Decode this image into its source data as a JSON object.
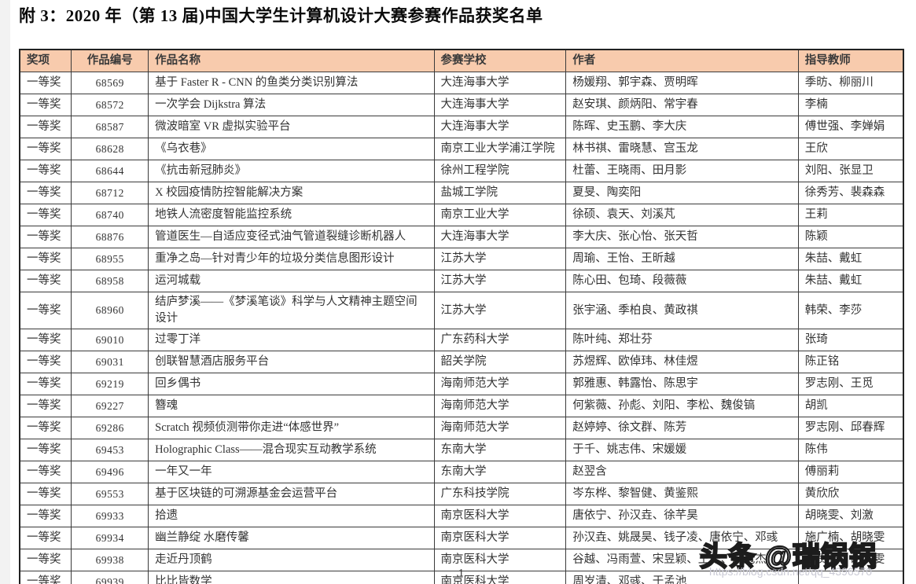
{
  "page": {
    "title": "附 3：2020 年（第 13 届)中国大学生计算机设计大赛参赛作品获奖名单",
    "page_number": "1"
  },
  "watermark": {
    "headline": "头条 @瑞锅锅",
    "url": "https://blog.csdn.net/qq_4396570"
  },
  "colors": {
    "header_bg": "#F8CBAD",
    "border": "#3a3a3a",
    "text": "#333333"
  },
  "table": {
    "headers": [
      "奖项",
      "作品编号",
      "作品名称",
      "参赛学校",
      "作者",
      "指导教师"
    ],
    "rows": [
      [
        "一等奖",
        "68569",
        "基于 Faster R - CNN 的鱼类分类识别算法",
        "大连海事大学",
        "杨媛翔、郭宇森、贾明晖",
        "季昉、柳丽川"
      ],
      [
        "一等奖",
        "68572",
        "一次学会 Dijkstra 算法",
        "大连海事大学",
        "赵安琪、颜炳阳、常宇春",
        "李楠"
      ],
      [
        "一等奖",
        "68587",
        "微波暗室 VR 虚拟实验平台",
        "大连海事大学",
        "陈晖、史玉鹏、李大庆",
        "傅世强、李婵娟"
      ],
      [
        "一等奖",
        "68628",
        "《乌衣巷》",
        "南京工业大学浦江学院",
        "林书祺、雷晓慧、宫玉龙",
        "王欣"
      ],
      [
        "一等奖",
        "68644",
        "《抗击新冠肺炎》",
        "徐州工程学院",
        "杜蕾、王晓雨、田月影",
        "刘阳、张显卫"
      ],
      [
        "一等奖",
        "68712",
        "X 校园疫情防控智能解决方案",
        "盐城工学院",
        "夏旻、陶奕阳",
        "徐秀芳、裴森森"
      ],
      [
        "一等奖",
        "68740",
        "地铁人流密度智能监控系统",
        "南京工业大学",
        "徐硕、袁天、刘溪芃",
        "王莉"
      ],
      [
        "一等奖",
        "68876",
        "管道医生—自适应变径式油气管道裂缝诊断机器人",
        "大连海事大学",
        "李大庆、张心怡、张天哲",
        "陈颖"
      ],
      [
        "一等奖",
        "68955",
        "重净之岛—针对青少年的垃圾分类信息图形设计",
        "江苏大学",
        "周瑜、王怡、王昕越",
        "朱喆、戴虹"
      ],
      [
        "一等奖",
        "68958",
        "运河城载",
        "江苏大学",
        "陈心田、包琦、段薇薇",
        "朱喆、戴虹"
      ],
      [
        "一等奖",
        "68960",
        "结庐梦溪——《梦溪笔谈》科学与人文精神主题空间设计",
        "江苏大学",
        "张宇涵、季柏良、黄政祺",
        "韩荣、李莎"
      ],
      [
        "一等奖",
        "69010",
        "过零丁洋",
        "广东药科大学",
        "陈叶纯、郑壮芬",
        "张琦"
      ],
      [
        "一等奖",
        "69031",
        "创联智慧酒店服务平台",
        "韶关学院",
        "苏煜辉、欧倬玮、林佳煜",
        "陈正铭"
      ],
      [
        "一等奖",
        "69219",
        "回乡偶书",
        "海南师范大学",
        "郭雅惠、韩露怡、陈思宇",
        "罗志刚、王觅"
      ],
      [
        "一等奖",
        "69227",
        "簪魂",
        "海南师范大学",
        "何紫薇、孙彪、刘阳、李松、魏俊镐",
        "胡凯"
      ],
      [
        "一等奖",
        "69286",
        "Scratch 视频侦测带你走进“体感世界”",
        "海南师范大学",
        "赵婷婷、徐文群、陈芳",
        "罗志刚、邱春辉"
      ],
      [
        "一等奖",
        "69453",
        "Holographic Class——混合现实互动教学系统",
        "东南大学",
        "于千、姚志伟、宋媛媛",
        "陈伟"
      ],
      [
        "一等奖",
        "69496",
        "一年又一年",
        "东南大学",
        "赵翌含",
        "傅丽莉"
      ],
      [
        "一等奖",
        "69553",
        "基于区块链的可溯源基金会运营平台",
        "广东科技学院",
        "岑东桦、黎智健、黄鉴熙",
        "黄欣欣"
      ],
      [
        "一等奖",
        "69933",
        "拾遗",
        "南京医科大学",
        "唐依宁、孙汉垚、徐芊昊",
        "胡晓雯、刘激"
      ],
      [
        "一等奖",
        "69934",
        "幽兰静绽 水磨传馨",
        "南京医科大学",
        "孙汉垚、姚晟昊、钱子凌、唐依宁、邓彧",
        "施广楠、胡晓雯"
      ],
      [
        "一等奖",
        "69938",
        "走近丹顶鹤",
        "南京医科大学",
        "谷越、冯雨萱、宋昱颖、王一、赵冠杰",
        "丁贵鹏、胡晓雯"
      ],
      [
        "一等奖",
        "69939",
        "比比皆数学",
        "南京医科大学",
        "周岁清、邓彧、于孟池",
        ""
      ]
    ]
  }
}
